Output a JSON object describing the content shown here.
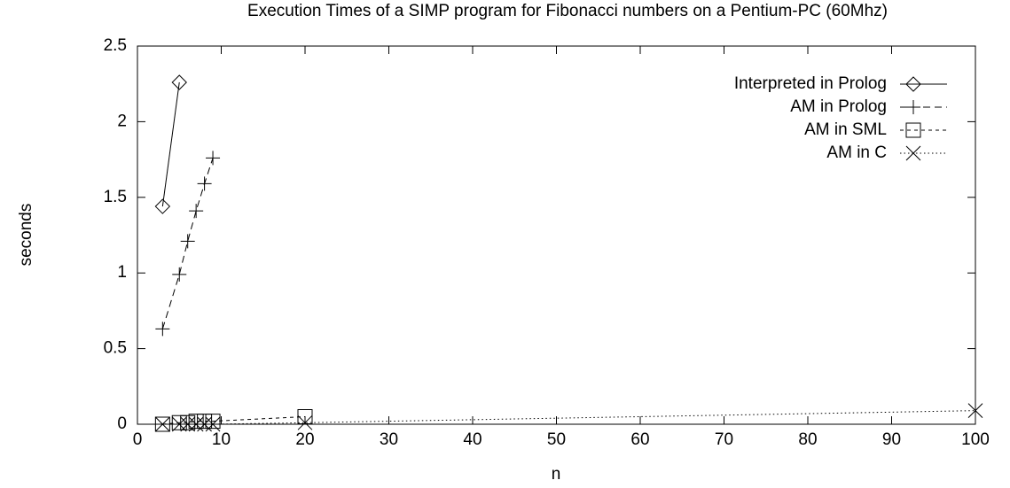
{
  "chart_data": {
    "type": "line",
    "title": "Execution Times of a SIMP program for Fibonacci numbers on a Pentium-PC (60Mhz)",
    "x_label": "n",
    "y_label": "seconds",
    "xlim": [
      0,
      100
    ],
    "ylim": [
      0,
      2.5
    ],
    "xticks": [
      0,
      10,
      20,
      30,
      40,
      50,
      60,
      70,
      80,
      90,
      100
    ],
    "yticks": [
      0,
      0.5,
      1,
      1.5,
      2,
      2.5
    ],
    "grid": false,
    "legend": "top-right",
    "series": [
      {
        "name": "Interpreted in Prolog",
        "color": "#000000",
        "marker": "diamond",
        "dash": "solid",
        "x": [
          3,
          5
        ],
        "values": [
          1.44,
          2.26
        ]
      },
      {
        "name": "AM in Prolog",
        "color": "#000000",
        "marker": "plus",
        "dash": "dashed",
        "x": [
          3,
          5,
          6,
          7,
          8,
          9
        ],
        "values": [
          0.63,
          0.99,
          1.21,
          1.41,
          1.59,
          1.76
        ]
      },
      {
        "name": "AM in SML",
        "color": "#000000",
        "marker": "square",
        "dash": "short-dashed",
        "x": [
          3,
          5,
          6,
          7,
          8,
          9,
          20
        ],
        "values": [
          0,
          0.01,
          0.01,
          0.02,
          0.02,
          0.02,
          0.05
        ]
      },
      {
        "name": "AM in C",
        "color": "#000000",
        "marker": "cross",
        "dash": "dotted",
        "x": [
          3,
          5,
          6,
          7,
          8,
          9,
          20,
          100
        ],
        "values": [
          0,
          0,
          0,
          0,
          0,
          0,
          0.01,
          0.09
        ]
      }
    ]
  }
}
